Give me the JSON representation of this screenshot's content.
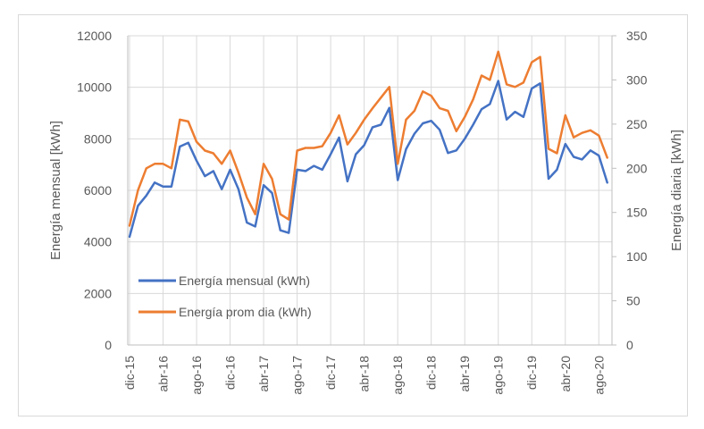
{
  "chart_data": {
    "type": "line",
    "title": "",
    "xlabel": "",
    "ylabel": "Energía mensual [kWh]",
    "y2label": "Energía diaria [kWh]",
    "ylim": [
      0,
      12000
    ],
    "y2lim": [
      0,
      350
    ],
    "yticks": [
      "0",
      "2000",
      "4000",
      "6000",
      "8000",
      "10000",
      "12000"
    ],
    "y2ticks": [
      "0",
      "50",
      "100",
      "150",
      "200",
      "250",
      "300",
      "350"
    ],
    "grid": true,
    "legend_position": "lower-left",
    "x_tick_labels": [
      "dic-15",
      "abr-16",
      "ago-16",
      "dic-16",
      "abr-17",
      "ago-17",
      "dic-17",
      "abr-18",
      "ago-18",
      "dic-18",
      "abr-19",
      "ago-19",
      "dic-19",
      "abr-20",
      "ago-20"
    ],
    "x": [
      "dic-15",
      "ene-16",
      "feb-16",
      "mar-16",
      "abr-16",
      "may-16",
      "jun-16",
      "jul-16",
      "ago-16",
      "sep-16",
      "oct-16",
      "nov-16",
      "dic-16",
      "ene-17",
      "feb-17",
      "mar-17",
      "abr-17",
      "may-17",
      "jun-17",
      "jul-17",
      "ago-17",
      "sep-17",
      "oct-17",
      "nov-17",
      "dic-17",
      "ene-18",
      "feb-18",
      "mar-18",
      "abr-18",
      "may-18",
      "jun-18",
      "jul-18",
      "ago-18",
      "sep-18",
      "oct-18",
      "nov-18",
      "dic-18",
      "ene-19",
      "feb-19",
      "mar-19",
      "abr-19",
      "may-19",
      "jun-19",
      "jul-19",
      "ago-19",
      "sep-19",
      "oct-19",
      "nov-19",
      "dic-19",
      "ene-20",
      "feb-20",
      "mar-20",
      "abr-20",
      "may-20",
      "jun-20",
      "jul-20",
      "ago-20",
      "sep-20"
    ],
    "series": [
      {
        "name": "Energía mensual (kWh)",
        "axis": "left",
        "color": "#4472c4",
        "values": [
          4200,
          5400,
          5800,
          6300,
          6150,
          6150,
          7700,
          7850,
          7150,
          6550,
          6750,
          6050,
          6800,
          6050,
          4750,
          4600,
          6200,
          5900,
          4450,
          4350,
          6800,
          6750,
          6950,
          6800,
          7400,
          8050,
          6350,
          7400,
          7750,
          8450,
          8550,
          9200,
          6400,
          7600,
          8200,
          8600,
          8700,
          8350,
          7450,
          7550,
          8000,
          8550,
          9150,
          9350,
          10250,
          8750,
          9050,
          8850,
          9950,
          10150,
          6450,
          6800,
          7800,
          7300,
          7200,
          7550,
          7350,
          6300
        ]
      },
      {
        "name": "Energía prom dia (kWh)",
        "axis": "right",
        "color": "#ed7d31",
        "values": [
          135,
          175,
          200,
          205,
          205,
          200,
          255,
          253,
          230,
          220,
          217,
          205,
          220,
          195,
          167,
          148,
          205,
          188,
          148,
          142,
          220,
          223,
          223,
          225,
          240,
          260,
          227,
          240,
          255,
          268,
          280,
          292,
          205,
          255,
          265,
          287,
          282,
          268,
          265,
          242,
          258,
          278,
          305,
          300,
          332,
          295,
          292,
          297,
          320,
          326,
          222,
          217,
          260,
          235,
          240,
          243,
          237,
          212
        ]
      }
    ]
  }
}
